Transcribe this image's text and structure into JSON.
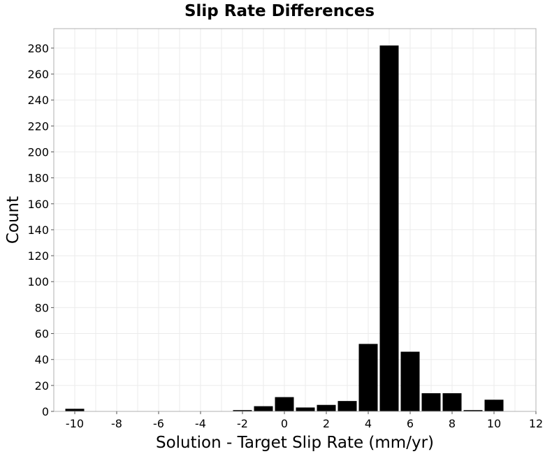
{
  "chart_data": {
    "type": "bar",
    "title": "Slip Rate Differences",
    "xlabel": "Solution - Target Slip Rate (mm/yr)",
    "ylabel": "Count",
    "xlim": [
      -11,
      12
    ],
    "ylim": [
      0,
      295
    ],
    "xticks": [
      -10,
      -8,
      -6,
      -4,
      -2,
      0,
      2,
      4,
      6,
      8,
      10,
      12
    ],
    "yticks": [
      0,
      20,
      40,
      60,
      80,
      100,
      120,
      140,
      160,
      180,
      200,
      220,
      240,
      260,
      280
    ],
    "bin_width": 1,
    "grid": true,
    "bar_color": "#000000",
    "bins": [
      {
        "x": -10,
        "count": 2
      },
      {
        "x": -2,
        "count": 1
      },
      {
        "x": -1,
        "count": 4
      },
      {
        "x": 0,
        "count": 11
      },
      {
        "x": 1,
        "count": 3
      },
      {
        "x": 2,
        "count": 5
      },
      {
        "x": 3,
        "count": 8
      },
      {
        "x": 4,
        "count": 52
      },
      {
        "x": 5,
        "count": 282
      },
      {
        "x": 6,
        "count": 46
      },
      {
        "x": 7,
        "count": 14
      },
      {
        "x": 8,
        "count": 14
      },
      {
        "x": 9,
        "count": 1
      },
      {
        "x": 10,
        "count": 9
      }
    ]
  }
}
